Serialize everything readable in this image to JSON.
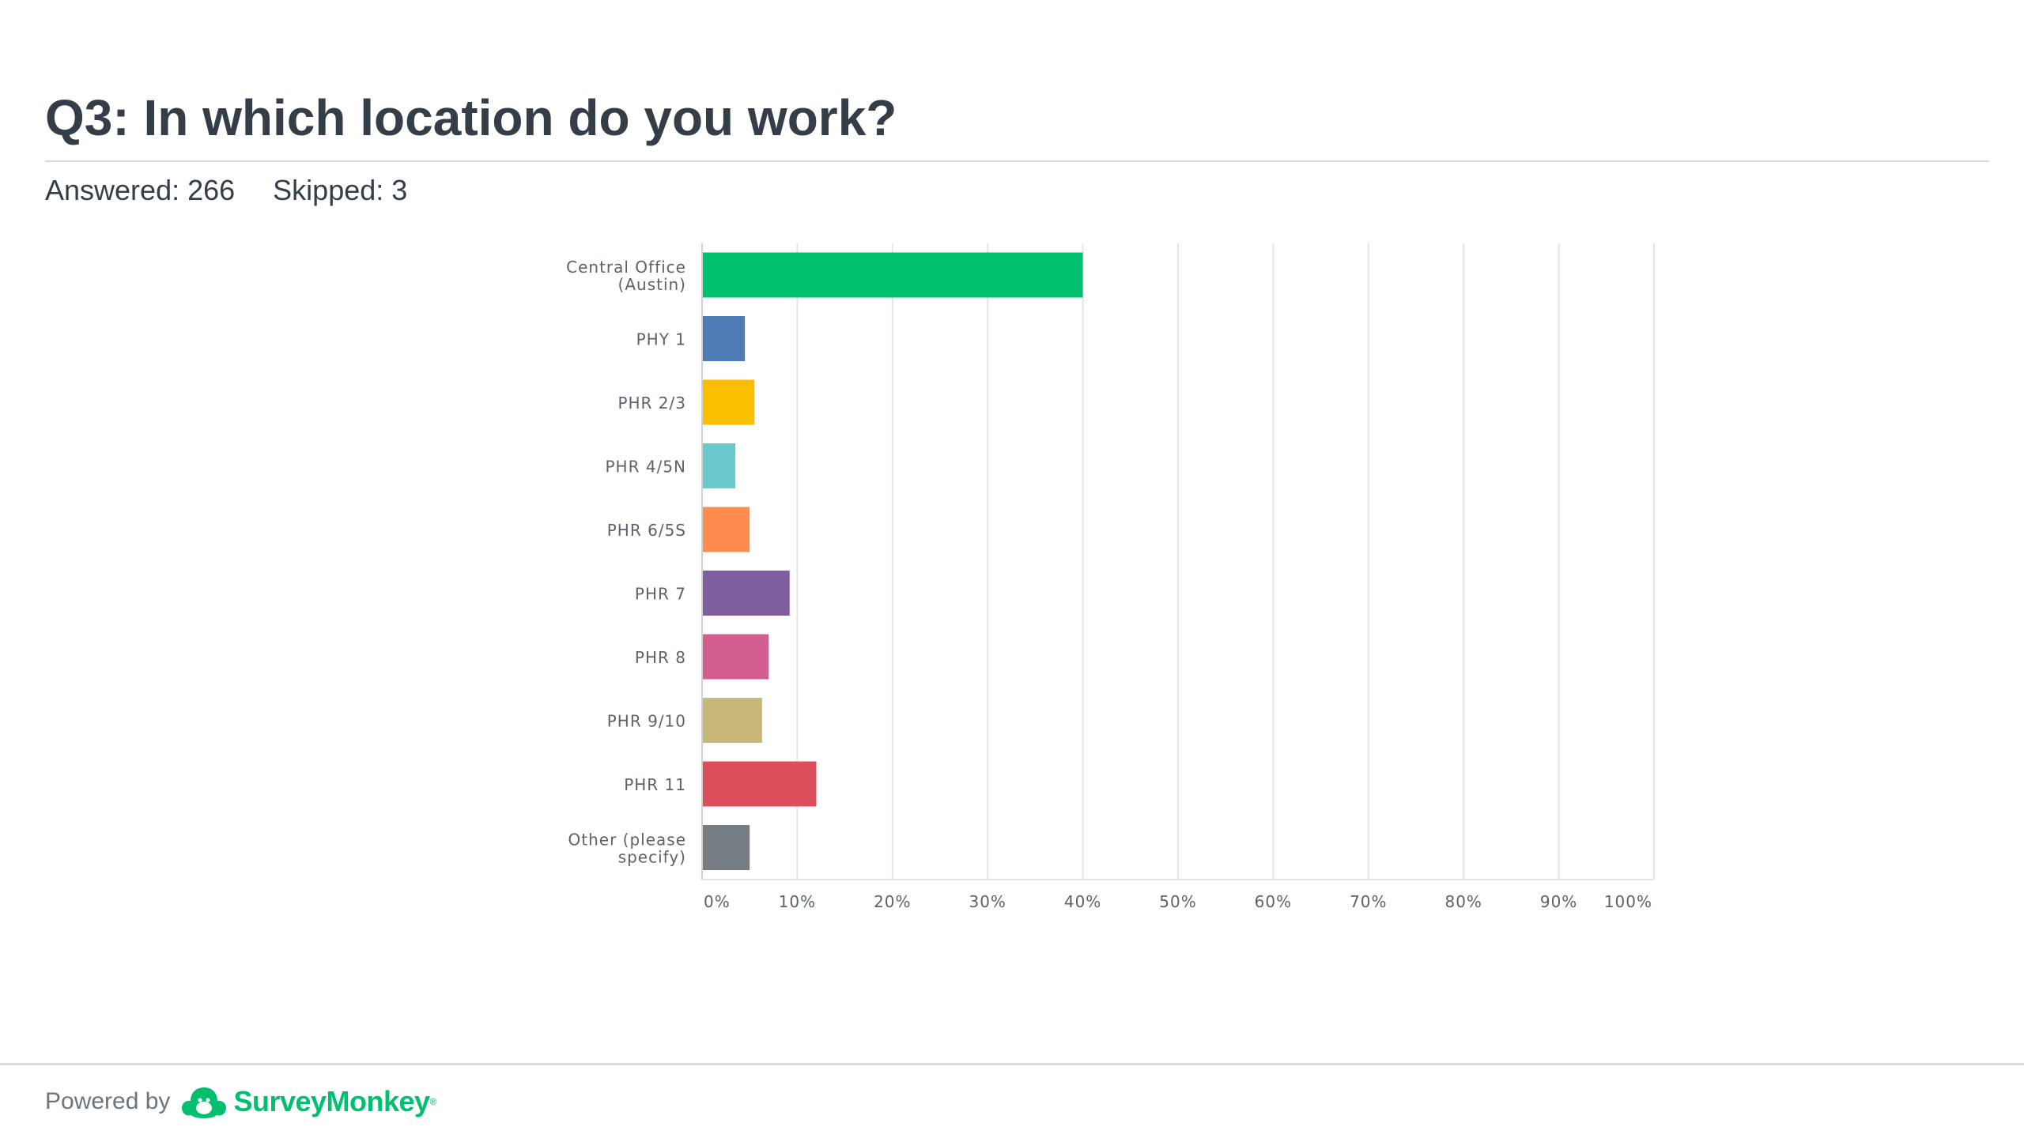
{
  "question": {
    "title": "Q3: In which location do you work?",
    "answered": "Answered: 266",
    "skipped": "Skipped: 3"
  },
  "footer": {
    "powered_by": "Powered by",
    "brand": "SurveyMonkey",
    "brand_mark": "®",
    "logo_icon": "surveymonkey-logo-icon"
  },
  "colors": {
    "brand_green": "#00bf6f",
    "title_text": "#333e48"
  },
  "chart_data": {
    "type": "bar",
    "orientation": "horizontal",
    "categories": [
      [
        "Central Office",
        "(Austin)"
      ],
      [
        "PHY 1"
      ],
      [
        "PHR 2/3"
      ],
      [
        "PHR 4/5N"
      ],
      [
        "PHR 6/5S"
      ],
      [
        "PHR 7"
      ],
      [
        "PHR 8"
      ],
      [
        "PHR 9/10"
      ],
      [
        "PHR 11"
      ],
      [
        "Other (please",
        "specify)"
      ]
    ],
    "values": [
      40.0,
      4.5,
      5.5,
      3.5,
      5.0,
      9.2,
      7.0,
      6.3,
      12.0,
      5.0
    ],
    "value_unit": "%",
    "bar_colors": [
      "#00bf6f",
      "#507cb6",
      "#f9be00",
      "#6bc8cd",
      "#ff8b4f",
      "#7f5e9d",
      "#d25f90",
      "#c7b879",
      "#dc4f5a",
      "#757d83"
    ],
    "xlim": [
      0,
      100
    ],
    "xticks": [
      0,
      10,
      20,
      30,
      40,
      50,
      60,
      70,
      80,
      90,
      100
    ],
    "xtick_labels": [
      "0%",
      "10%",
      "20%",
      "30%",
      "40%",
      "50%",
      "60%",
      "70%",
      "80%",
      "90%",
      "100%"
    ],
    "grid": true,
    "legend": "none"
  }
}
